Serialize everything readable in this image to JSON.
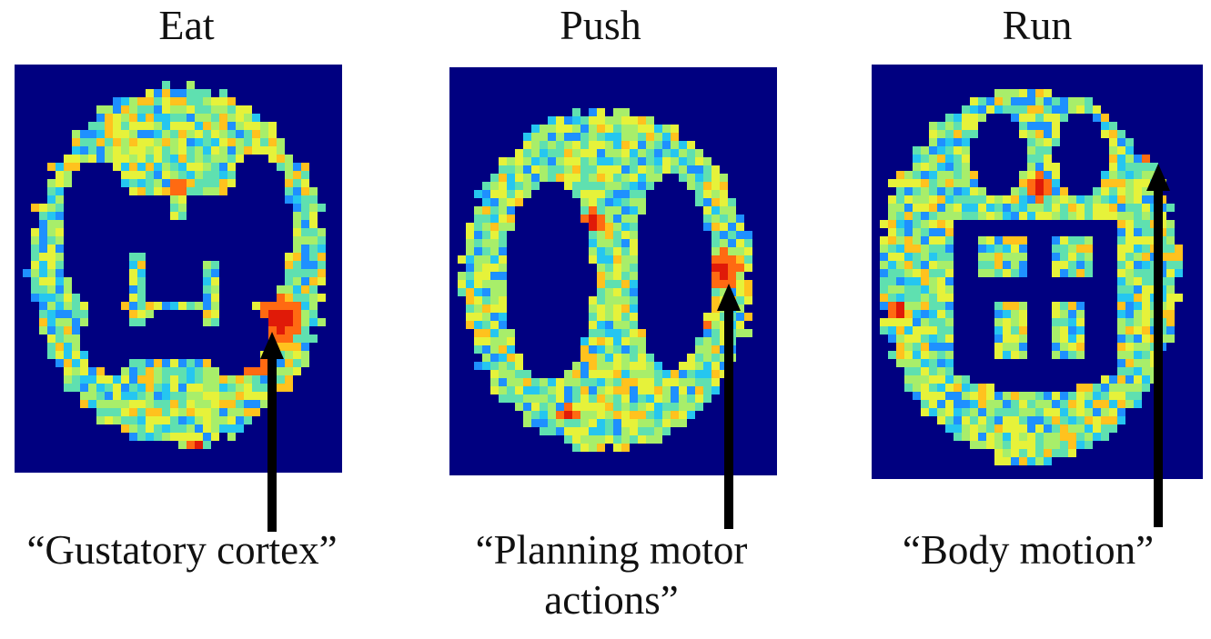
{
  "colors": {
    "background": "#000080",
    "scale": [
      "#1e90ff",
      "#25c6f0",
      "#5fe0b0",
      "#a8ee6a",
      "#e6f23a",
      "#ffc21e",
      "#ff6a12",
      "#e01a08"
    ],
    "arrow": "#000000"
  },
  "panels": [
    {
      "title": "Eat",
      "caption_lines": [
        "“Gustatory cortex”"
      ],
      "icon": "brain-slice-axial"
    },
    {
      "title": "Push",
      "caption_lines": [
        "“Planning motor",
        "actions”"
      ],
      "icon": "brain-slice-axial"
    },
    {
      "title": "Run",
      "caption_lines": [
        "“Body motion”"
      ],
      "icon": "brain-slice-axial"
    }
  ]
}
